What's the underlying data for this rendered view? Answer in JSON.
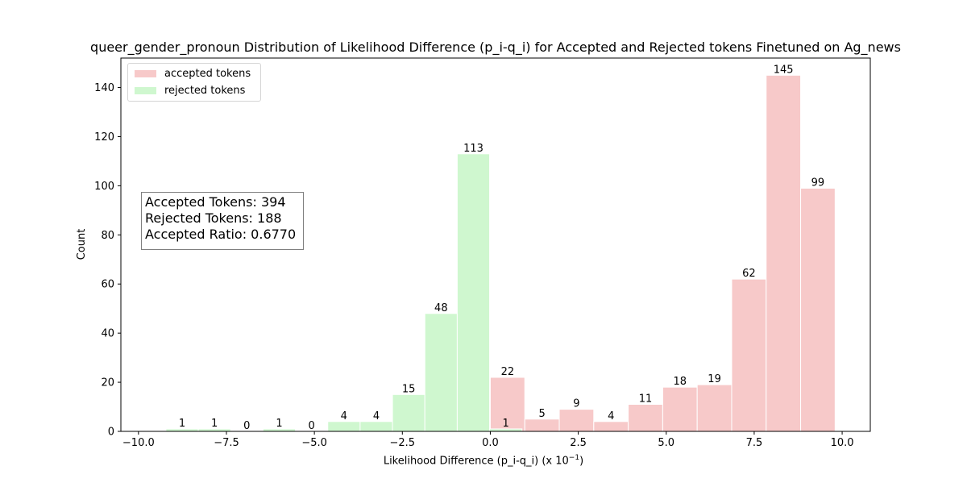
{
  "chart_data": {
    "type": "bar",
    "title": "queer_gender_pronoun Distribution of Likelihood Difference (p_i-q_i) for Accepted and Rejected tokens Finetuned on Ag_news",
    "xlabel": "Likelihood Difference (p_i-q_i) (x 10",
    "xlabel_exponent": "−1",
    "xlabel_close": ")",
    "ylabel": "Count",
    "xlim": [
      -10.5,
      10.8
    ],
    "ylim": [
      0,
      152
    ],
    "x_ticks": [
      -10.0,
      -7.5,
      -5.0,
      -2.5,
      0.0,
      2.5,
      5.0,
      7.5,
      10.0
    ],
    "x_tick_labels": [
      "−10.0",
      "−7.5",
      "−5.0",
      "−2.5",
      "0.0",
      "2.5",
      "5.0",
      "7.5",
      "10.0"
    ],
    "y_ticks": [
      0,
      20,
      40,
      60,
      80,
      100,
      120,
      140
    ],
    "y_tick_labels": [
      "0",
      "20",
      "40",
      "60",
      "80",
      "100",
      "120",
      "140"
    ],
    "legend_position": "top-left",
    "series": [
      {
        "name": "accepted tokens",
        "color": "#f7c9c9",
        "bins": [
          {
            "x0": 0.0,
            "x1": 0.98,
            "value": 22
          },
          {
            "x0": 0.98,
            "x1": 1.96,
            "value": 5
          },
          {
            "x0": 1.96,
            "x1": 2.94,
            "value": 9
          },
          {
            "x0": 2.94,
            "x1": 3.92,
            "value": 4
          },
          {
            "x0": 3.92,
            "x1": 4.9,
            "value": 11
          },
          {
            "x0": 4.9,
            "x1": 5.88,
            "value": 18
          },
          {
            "x0": 5.88,
            "x1": 6.86,
            "value": 19
          },
          {
            "x0": 6.86,
            "x1": 7.84,
            "value": 62
          },
          {
            "x0": 7.84,
            "x1": 8.82,
            "value": 145
          },
          {
            "x0": 8.82,
            "x1": 9.8,
            "value": 99
          }
        ]
      },
      {
        "name": "rejected tokens",
        "color": "#cff7cf",
        "bins": [
          {
            "x0": -9.22,
            "x1": -8.3,
            "value": 1
          },
          {
            "x0": -8.3,
            "x1": -7.38,
            "value": 1
          },
          {
            "x0": -7.38,
            "x1": -6.46,
            "value": 0
          },
          {
            "x0": -6.46,
            "x1": -5.54,
            "value": 1
          },
          {
            "x0": -5.54,
            "x1": -4.62,
            "value": 0
          },
          {
            "x0": -4.62,
            "x1": -3.7,
            "value": 4
          },
          {
            "x0": -3.7,
            "x1": -2.78,
            "value": 4
          },
          {
            "x0": -2.78,
            "x1": -1.86,
            "value": 15
          },
          {
            "x0": -1.86,
            "x1": -0.94,
            "value": 48
          },
          {
            "x0": -0.94,
            "x1": -0.02,
            "value": 113
          },
          {
            "x0": -0.02,
            "x1": 0.9,
            "value": 1
          }
        ]
      }
    ],
    "annotation": {
      "accepted": "Accepted Tokens: 394",
      "rejected": "Rejected Tokens: 188",
      "ratio": "Accepted Ratio: 0.6770"
    }
  }
}
